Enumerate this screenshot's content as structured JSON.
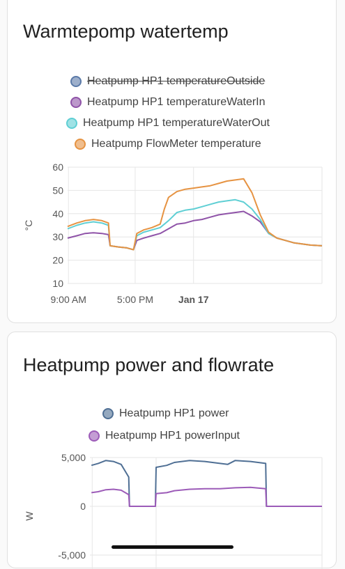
{
  "colors": {
    "outside": "#5b7aa8",
    "waterIn": "#8f53a8",
    "waterOut": "#5fcfd4",
    "flow": "#e69342",
    "power": "#4f6f94",
    "powerInput": "#9c5bb8",
    "grid": "#e6e6e6",
    "axis": "#555555"
  },
  "card1": {
    "title": "Warmtepomp watertemp",
    "legend": [
      {
        "label": "Heatpump HP1 temperatureOutside",
        "color": "#5b7aa8",
        "hidden": true
      },
      {
        "label": "Heatpump HP1 temperatureWaterIn",
        "color": "#8f53a8",
        "hidden": false
      },
      {
        "label": "Heatpump HP1 temperatureWaterOut",
        "color": "#5fcfd4",
        "hidden": false
      },
      {
        "label": "Heatpump FlowMeter temperature",
        "color": "#e69342",
        "hidden": false
      }
    ]
  },
  "card2": {
    "title": "Heatpump power and flowrate",
    "legend": [
      {
        "label": "Heatpump HP1 power",
        "color": "#4f6f94",
        "hidden": false
      },
      {
        "label": "Heatpump HP1 powerInput",
        "color": "#9c5bb8",
        "hidden": false
      }
    ]
  },
  "chart_data": [
    {
      "type": "line",
      "title": "Warmtepomp watertemp",
      "ylabel": "°C",
      "ylim": [
        10,
        60
      ],
      "yticks": [
        10,
        20,
        30,
        40,
        50,
        60
      ],
      "xlim": [
        8.9,
        39.4
      ],
      "xticks": [
        {
          "x": 9,
          "label": "9:00 AM",
          "bold": false
        },
        {
          "x": 17,
          "label": "5:00 PM",
          "bold": false
        },
        {
          "x": 24,
          "label": "Jan 17",
          "bold": true
        }
      ],
      "xunit": "hours since midnight of the first day",
      "grid": true,
      "series": [
        {
          "name": "Heatpump HP1 temperatureOutside",
          "hidden": true,
          "x": [],
          "y": []
        },
        {
          "name": "Heatpump HP1 temperatureWaterIn",
          "x": [
            8.9,
            10.0,
            11.0,
            12.0,
            13.0,
            13.8,
            14.0,
            15.0,
            16.0,
            16.8,
            17.2,
            18.0,
            19.0,
            20.0,
            21.0,
            22.0,
            23.0,
            24.0,
            25.0,
            26.0,
            27.0,
            28.0,
            29.0,
            30.0,
            31.0,
            32.0,
            33.0,
            34.0,
            35.0,
            36.0,
            37.0,
            38.0,
            39.4
          ],
          "y": [
            29.5,
            30.5,
            31.5,
            31.8,
            31.5,
            31.0,
            26.2,
            25.7,
            25.3,
            24.5,
            28.5,
            29.5,
            30.5,
            31.5,
            33.5,
            35.5,
            36.0,
            37.0,
            37.5,
            38.5,
            39.5,
            40.0,
            40.5,
            41.0,
            39.0,
            36.5,
            31.5,
            29.5,
            28.5,
            27.5,
            27.0,
            26.5,
            26.2
          ]
        },
        {
          "name": "Heatpump HP1 temperatureWaterOut",
          "x": [
            8.9,
            10.0,
            11.0,
            12.0,
            13.0,
            13.8,
            14.0,
            15.0,
            16.0,
            16.8,
            17.2,
            18.0,
            19.0,
            20.0,
            21.0,
            22.0,
            23.0,
            24.0,
            25.0,
            26.0,
            27.0,
            28.0,
            29.0,
            30.0,
            31.0,
            32.0,
            33.0,
            34.0,
            35.0,
            36.0,
            37.0,
            38.0,
            39.4
          ],
          "y": [
            33.5,
            35.0,
            36.0,
            36.5,
            36.0,
            35.0,
            26.2,
            25.7,
            25.3,
            24.5,
            30.5,
            32.0,
            33.0,
            34.0,
            37.0,
            40.5,
            41.5,
            42.0,
            43.0,
            44.0,
            45.0,
            45.5,
            46.0,
            45.0,
            42.0,
            37.5,
            31.5,
            29.5,
            28.5,
            27.5,
            27.0,
            26.5,
            26.2
          ]
        },
        {
          "name": "Heatpump FlowMeter temperature",
          "x": [
            8.9,
            10.0,
            11.0,
            12.0,
            13.0,
            13.8,
            14.0,
            15.0,
            16.0,
            16.8,
            17.2,
            18.0,
            19.0,
            20.0,
            20.5,
            21.0,
            22.0,
            23.0,
            24.0,
            25.0,
            26.0,
            27.0,
            28.0,
            29.0,
            30.0,
            31.0,
            32.0,
            33.0,
            34.0,
            35.0,
            36.0,
            37.0,
            38.0,
            39.4
          ],
          "y": [
            34.5,
            36.0,
            37.0,
            37.5,
            37.0,
            36.0,
            26.2,
            25.7,
            25.3,
            24.5,
            31.5,
            33.0,
            34.0,
            35.5,
            42.0,
            47.0,
            49.5,
            50.5,
            51.0,
            51.5,
            52.0,
            53.0,
            54.0,
            54.5,
            55.0,
            49.0,
            39.5,
            32.0,
            29.5,
            28.5,
            27.5,
            27.0,
            26.5,
            26.2
          ]
        }
      ]
    },
    {
      "type": "line",
      "title": "Heatpump power and flowrate",
      "ylabel": "W",
      "ylim": [
        -7000,
        5000
      ],
      "yticks": [
        -5000,
        0,
        5000
      ],
      "yticklabels": [
        "-5,000",
        "0",
        "5,000"
      ],
      "xlim": [
        8.9,
        39.4
      ],
      "xunit": "hours since midnight of the first day",
      "grid": true,
      "series": [
        {
          "name": "Heatpump HP1 power",
          "x": [
            9.1,
            10.0,
            11.0,
            12.0,
            13.0,
            14.0,
            14.1,
            17.5,
            17.6,
            19.0,
            20.0,
            22.0,
            24.0,
            26.0,
            27.0,
            28.0,
            30.0,
            32.0,
            32.1,
            39.4
          ],
          "y": [
            4200,
            4400,
            4700,
            4600,
            4300,
            3000,
            0,
            0,
            4000,
            4200,
            4500,
            4700,
            4600,
            4400,
            4300,
            4700,
            4600,
            4400,
            0,
            0
          ]
        },
        {
          "name": "Heatpump HP1 powerInput",
          "x": [
            9.1,
            10.0,
            11.0,
            12.0,
            13.0,
            14.0,
            14.1,
            17.5,
            17.6,
            19.0,
            20.0,
            22.0,
            24.0,
            26.0,
            28.0,
            30.0,
            32.0,
            32.1,
            39.4
          ],
          "y": [
            1400,
            1500,
            1700,
            1750,
            1650,
            1200,
            0,
            0,
            1300,
            1400,
            1600,
            1750,
            1800,
            1800,
            1900,
            1950,
            1800,
            0,
            0
          ]
        }
      ]
    }
  ]
}
